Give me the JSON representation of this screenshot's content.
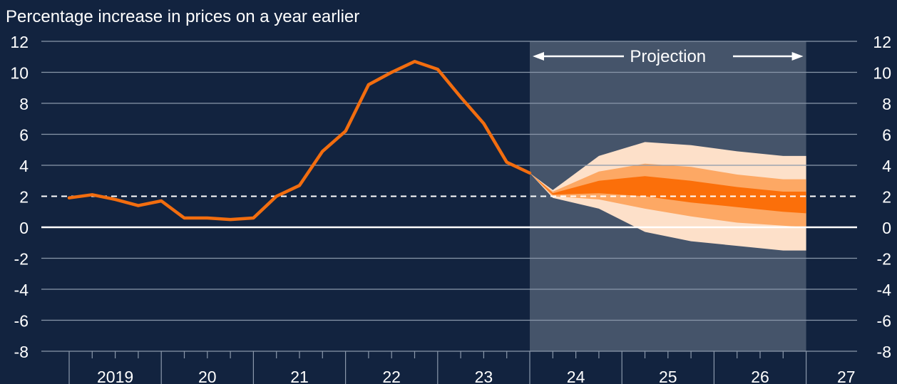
{
  "chart_data": {
    "type": "line",
    "title": "Percentage increase in prices on a year earlier",
    "ylim": [
      -8,
      12
    ],
    "yticks": [
      "12",
      "10",
      "8",
      "6",
      "4",
      "2",
      "0",
      "-2",
      "-4",
      "-6",
      "-8"
    ],
    "xlabels": [
      "2019",
      "20",
      "21",
      "22",
      "23",
      "24",
      "25",
      "26",
      "27"
    ],
    "target_line": 2,
    "projection_label": "Projection",
    "series": [
      {
        "values": [
          {
            "t": 2019.0,
            "y": 1.9
          },
          {
            "t": 2019.25,
            "y": 2.1
          },
          {
            "t": 2019.5,
            "y": 1.8
          },
          {
            "t": 2019.75,
            "y": 1.4
          },
          {
            "t": 2020.0,
            "y": 1.7
          },
          {
            "t": 2020.25,
            "y": 0.6
          },
          {
            "t": 2020.5,
            "y": 0.6
          },
          {
            "t": 2020.75,
            "y": 0.5
          },
          {
            "t": 2021.0,
            "y": 0.6
          },
          {
            "t": 2021.25,
            "y": 2.0
          },
          {
            "t": 2021.5,
            "y": 2.7
          },
          {
            "t": 2021.75,
            "y": 4.9
          },
          {
            "t": 2022.0,
            "y": 6.2
          },
          {
            "t": 2022.25,
            "y": 9.2
          },
          {
            "t": 2022.5,
            "y": 10.0
          },
          {
            "t": 2022.75,
            "y": 10.7
          },
          {
            "t": 2023.0,
            "y": 10.2
          },
          {
            "t": 2023.25,
            "y": 8.4
          },
          {
            "t": 2023.5,
            "y": 6.7
          },
          {
            "t": 2023.75,
            "y": 4.2
          },
          {
            "t": 2024.0,
            "y": 3.5
          }
        ]
      }
    ],
    "fan": {
      "x": [
        2024.0,
        2024.25,
        2024.75,
        2025.25,
        2025.75,
        2026.25,
        2026.75,
        2027.0
      ],
      "outer_upper": [
        3.5,
        2.4,
        4.6,
        5.5,
        5.3,
        4.9,
        4.6,
        4.6
      ],
      "mid_upper": [
        3.5,
        2.3,
        3.6,
        4.1,
        3.9,
        3.4,
        3.1,
        3.1
      ],
      "inner_upper": [
        3.5,
        2.2,
        3.0,
        3.3,
        3.0,
        2.6,
        2.3,
        2.3
      ],
      "inner_lower": [
        3.5,
        2.1,
        2.2,
        2.0,
        1.6,
        1.3,
        1.0,
        0.9
      ],
      "mid_lower": [
        3.5,
        2.0,
        1.8,
        1.2,
        0.7,
        0.3,
        0.1,
        0.0
      ],
      "outer_lower": [
        3.5,
        1.9,
        1.2,
        -0.3,
        -0.9,
        -1.2,
        -1.5,
        -1.5
      ]
    },
    "colors": {
      "background": "#12233f",
      "projection_bg": "#45546a",
      "line": "#f26d0f",
      "fan_outer": "#fde0c9",
      "fan_mid": "#fda864",
      "fan_inner": "#fb6f0a",
      "grid": "#8a98ab",
      "zero_line": "#ffffff"
    }
  }
}
